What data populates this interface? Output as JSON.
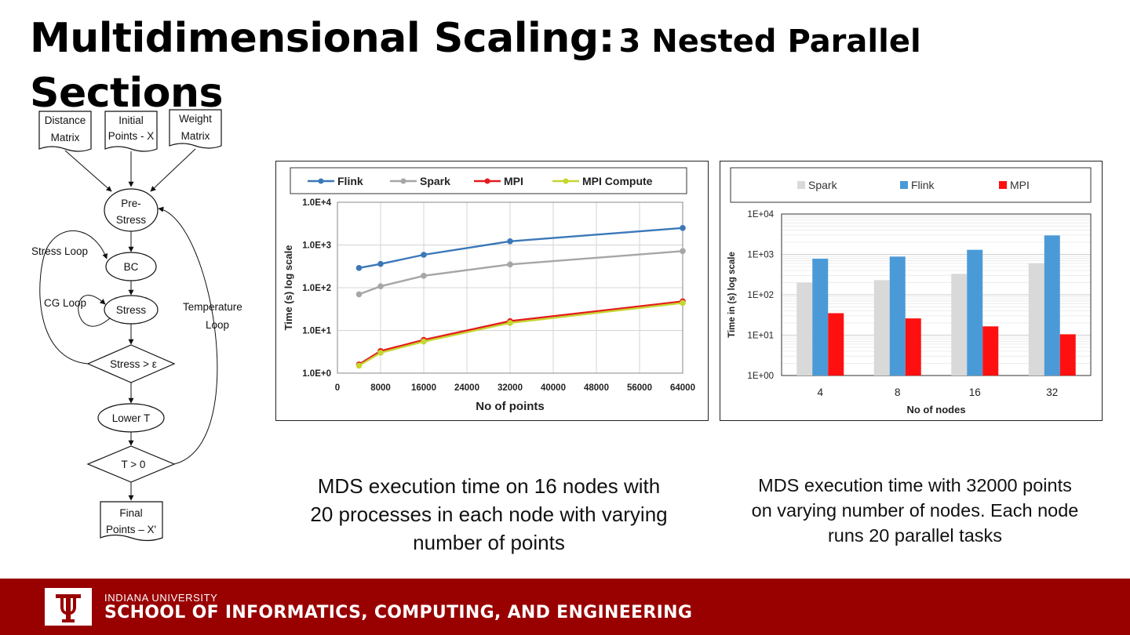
{
  "slide": {
    "title_main": "Multidimensional Scaling:",
    "title_sub": "3 Nested Parallel",
    "title_line2": "Sections"
  },
  "flowchart": {
    "doc_distance_1": "Distance",
    "doc_distance_2": "Matrix",
    "doc_initial_1": "Initial",
    "doc_initial_2": "Points - X",
    "doc_weight_1": "Weight",
    "doc_weight_2": "Matrix",
    "prestress_1": "Pre-",
    "prestress_2": "Stress",
    "bc": "BC",
    "stress": "Stress",
    "stress_cond": "Stress > ε",
    "lower_t": "Lower T",
    "t_cond": "T > 0",
    "final_1": "Final",
    "final_2": "Points – X'",
    "stress_loop": "Stress Loop",
    "cg_loop": "CG Loop",
    "temp_loop_1": "Temperature",
    "temp_loop_2": "Loop"
  },
  "captions": {
    "left": "MDS execution time on 16 nodes with 20 processes in each node with varying number of points",
    "right": "MDS execution time with 32000 points on varying number of nodes. Each node runs 20 parallel tasks"
  },
  "footer": {
    "university": "INDIANA UNIVERSITY",
    "school": "SCHOOL OF INFORMATICS, COMPUTING, AND ENGINEERING"
  },
  "chart_data": [
    {
      "type": "line",
      "title": "",
      "xlabel": "No of points",
      "ylabel": "Time (s) log scale",
      "yscale": "log",
      "ylim": [
        1,
        10000
      ],
      "xlim": [
        0,
        64000
      ],
      "grid": true,
      "legend": "top",
      "x_ticks": [
        "0",
        "8000",
        "16000",
        "24000",
        "32000",
        "40000",
        "48000",
        "56000",
        "64000"
      ],
      "y_ticks": [
        "1.0E+0",
        "1.0E+1",
        "1.0E+2",
        "1.0E+3",
        "1.0E+4"
      ],
      "x": [
        4000,
        8000,
        16000,
        32000,
        64000
      ],
      "series": [
        {
          "name": "Flink",
          "color": "#3a78b8",
          "values": [
            290,
            360,
            590,
            1220,
            2500
          ]
        },
        {
          "name": "Spark",
          "color": "#a6a6a6",
          "values": [
            70,
            108,
            190,
            350,
            720
          ]
        },
        {
          "name": "MPI",
          "color": "#e31a1c",
          "values": [
            1.6,
            3.3,
            6.0,
            16.5,
            48
          ]
        },
        {
          "name": "MPI Compute",
          "color": "#c7d531",
          "values": [
            1.5,
            3.0,
            5.5,
            15.0,
            44
          ]
        }
      ]
    },
    {
      "type": "bar",
      "title": "",
      "xlabel": "No of nodes",
      "ylabel": "Time in (s) log scale",
      "yscale": "log",
      "ylim": [
        1,
        10000
      ],
      "grid": true,
      "legend": "top",
      "y_ticks": [
        "1E+00",
        "1E+01",
        "1E+02",
        "1E+03",
        "1E+04"
      ],
      "categories": [
        "4",
        "8",
        "16",
        "32"
      ],
      "series": [
        {
          "name": "Spark",
          "color": "#d9d9d9",
          "values": [
            200,
            230,
            330,
            600
          ]
        },
        {
          "name": "Flink",
          "color": "#4a9ad8",
          "values": [
            780,
            880,
            1300,
            2950
          ]
        },
        {
          "name": "MPI",
          "color": "#ff1010",
          "values": [
            35,
            26,
            16.5,
            10.5
          ]
        }
      ]
    }
  ]
}
